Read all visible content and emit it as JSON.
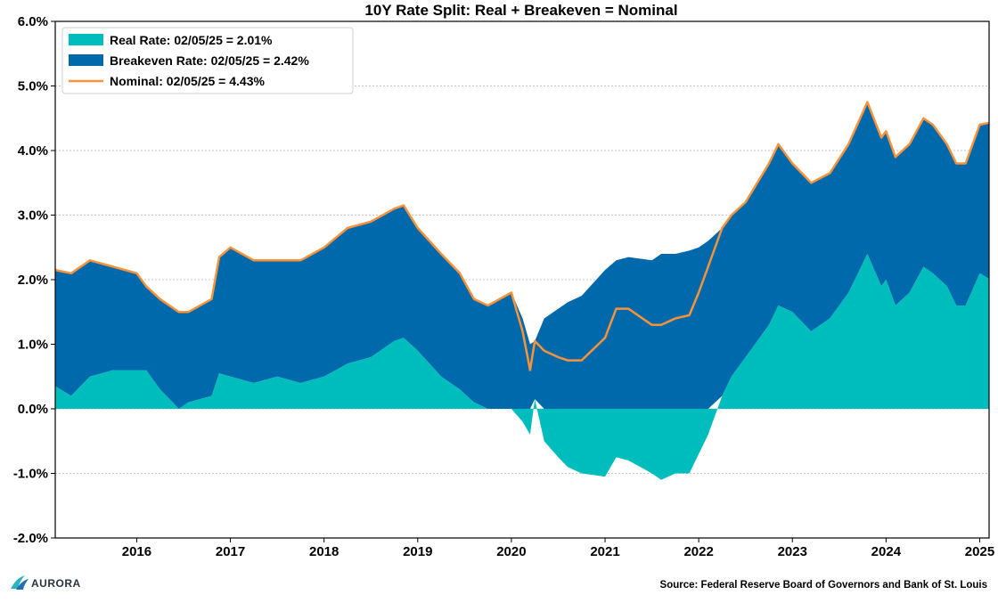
{
  "chart_data": {
    "type": "area",
    "title": "10Y Rate Split: Real + Breakeven = Nominal",
    "xlabel": "",
    "ylabel": "",
    "x_range": [
      2015.13,
      2025.1
    ],
    "ylim": [
      -2.0,
      6.0
    ],
    "y_ticks": [
      -2.0,
      -1.0,
      0.0,
      1.0,
      2.0,
      3.0,
      4.0,
      5.0,
      6.0
    ],
    "y_tick_labels": [
      "-2.0%",
      "-1.0%",
      "0.0%",
      "1.0%",
      "2.0%",
      "3.0%",
      "4.0%",
      "5.0%",
      "6.0%"
    ],
    "x_ticks": [
      2016,
      2017,
      2018,
      2019,
      2020,
      2021,
      2022,
      2023,
      2024,
      2025
    ],
    "x_tick_labels": [
      "2016",
      "2017",
      "2018",
      "2019",
      "2020",
      "2021",
      "2022",
      "2023",
      "2024",
      "2025"
    ],
    "grid": "horizontal dotted",
    "legend_position": "top-left",
    "x": [
      2015.13,
      2015.3,
      2015.5,
      2015.75,
      2016.0,
      2016.1,
      2016.25,
      2016.45,
      2016.55,
      2016.8,
      2016.88,
      2017.0,
      2017.25,
      2017.5,
      2017.75,
      2018.0,
      2018.25,
      2018.5,
      2018.75,
      2018.85,
      2019.0,
      2019.25,
      2019.45,
      2019.6,
      2019.75,
      2020.0,
      2020.12,
      2020.2,
      2020.25,
      2020.35,
      2020.5,
      2020.6,
      2020.75,
      2021.0,
      2021.12,
      2021.25,
      2021.5,
      2021.6,
      2021.75,
      2021.9,
      2022.0,
      2022.1,
      2022.25,
      2022.35,
      2022.5,
      2022.75,
      2022.85,
      2023.0,
      2023.2,
      2023.4,
      2023.6,
      2023.8,
      2023.95,
      2024.0,
      2024.1,
      2024.25,
      2024.4,
      2024.5,
      2024.65,
      2024.75,
      2024.85,
      2025.0,
      2025.1
    ],
    "series": [
      {
        "name": "Real Rate",
        "color": "#00bdbd",
        "values": [
          0.35,
          0.2,
          0.5,
          0.6,
          0.6,
          0.6,
          0.3,
          0.0,
          0.1,
          0.2,
          0.55,
          0.5,
          0.4,
          0.5,
          0.4,
          0.5,
          0.7,
          0.8,
          1.05,
          1.1,
          0.9,
          0.5,
          0.3,
          0.1,
          0.0,
          0.0,
          -0.2,
          -0.4,
          0.15,
          -0.5,
          -0.75,
          -0.9,
          -1.0,
          -1.05,
          -0.75,
          -0.8,
          -1.0,
          -1.1,
          -1.0,
          -1.0,
          -0.7,
          -0.4,
          0.2,
          0.5,
          0.8,
          1.3,
          1.6,
          1.5,
          1.2,
          1.4,
          1.8,
          2.4,
          1.9,
          2.0,
          1.6,
          1.8,
          2.2,
          2.1,
          1.9,
          1.6,
          1.6,
          2.1,
          2.01
        ]
      },
      {
        "name": "Breakeven Rate",
        "color": "#0069ac",
        "values": [
          1.8,
          1.9,
          1.8,
          1.6,
          1.5,
          1.3,
          1.4,
          1.5,
          1.4,
          1.5,
          1.8,
          2.0,
          1.9,
          1.8,
          1.9,
          2.0,
          2.1,
          2.1,
          2.05,
          2.05,
          1.9,
          1.9,
          1.8,
          1.6,
          1.6,
          1.8,
          1.4,
          1.0,
          0.9,
          1.4,
          1.55,
          1.65,
          1.75,
          2.15,
          2.3,
          2.35,
          2.3,
          2.4,
          2.4,
          2.45,
          2.5,
          2.6,
          2.6,
          2.5,
          2.4,
          2.5,
          2.5,
          2.3,
          2.3,
          2.25,
          2.3,
          2.35,
          2.3,
          2.3,
          2.3,
          2.3,
          2.3,
          2.3,
          2.2,
          2.2,
          2.2,
          2.3,
          2.42
        ]
      },
      {
        "name": "Nominal",
        "color": "#f7933a",
        "values": [
          2.15,
          2.1,
          2.3,
          2.2,
          2.1,
          1.9,
          1.7,
          1.5,
          1.5,
          1.7,
          2.35,
          2.5,
          2.3,
          2.3,
          2.3,
          2.5,
          2.8,
          2.9,
          3.1,
          3.15,
          2.8,
          2.4,
          2.1,
          1.7,
          1.6,
          1.8,
          1.2,
          0.6,
          1.05,
          0.9,
          0.8,
          0.75,
          0.75,
          1.1,
          1.55,
          1.55,
          1.3,
          1.3,
          1.4,
          1.45,
          1.8,
          2.2,
          2.8,
          3.0,
          3.2,
          3.8,
          4.1,
          3.8,
          3.5,
          3.65,
          4.1,
          4.75,
          4.2,
          4.3,
          3.9,
          4.1,
          4.5,
          4.4,
          4.1,
          3.8,
          3.8,
          4.4,
          4.43
        ]
      }
    ],
    "legend": [
      {
        "label": "Real Rate: 02/05/25 = 2.01%",
        "kind": "patch",
        "color": "#00bdbd"
      },
      {
        "label": "Breakeven Rate: 02/05/25 = 2.42%",
        "kind": "patch",
        "color": "#0069ac"
      },
      {
        "label": "Nominal: 02/05/25 = 4.43%",
        "kind": "line",
        "color": "#f7933a"
      }
    ]
  },
  "footer": {
    "logo_text": "AURORA",
    "logo_icon": "aurora-logo-icon",
    "source": "Source: Federal Reserve Board of Governors and Bank of St. Louis"
  }
}
